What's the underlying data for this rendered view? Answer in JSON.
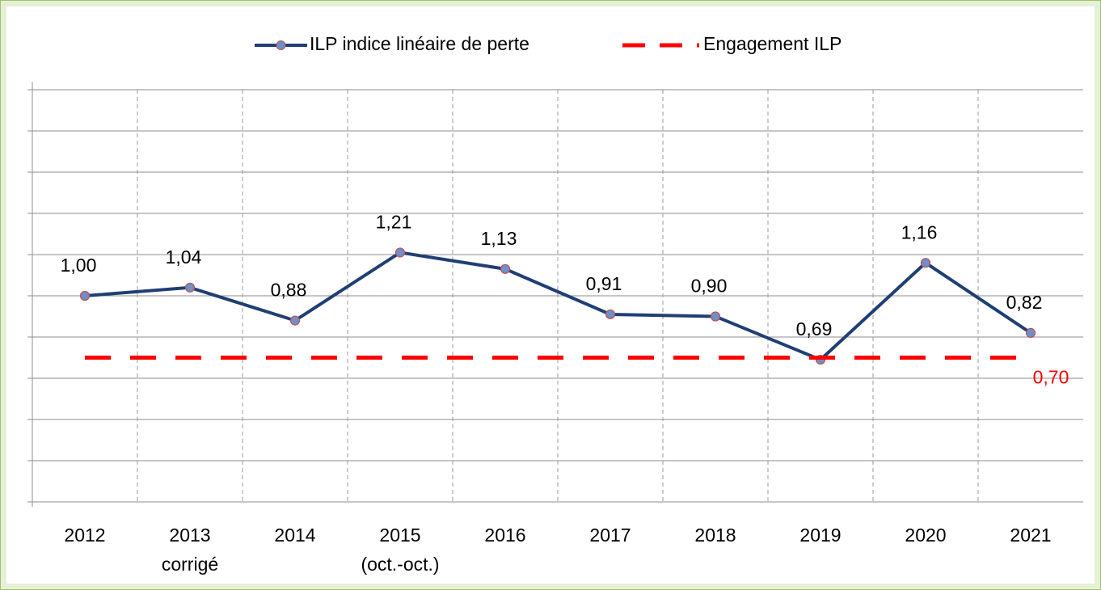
{
  "chart_data": {
    "type": "line",
    "categories": [
      "2012",
      "2013\ncorrigé",
      "2014",
      "2015\n(oct.-oct.)",
      "2016",
      "2017",
      "2018",
      "2019",
      "2020",
      "2021"
    ],
    "series": [
      {
        "name": "ILP indice linéaire de perte",
        "color": "#1f3f74",
        "marker_color": "#6f8fc8",
        "marker_edge": "#c0504d",
        "values": [
          1.0,
          1.04,
          0.88,
          1.21,
          1.13,
          0.91,
          0.9,
          0.69,
          1.16,
          0.82
        ],
        "value_labels": [
          "1,00",
          "1,04",
          "0,88",
          "1,21",
          "1,13",
          "0,91",
          "0,90",
          "0,69",
          "1,16",
          "0,82"
        ]
      },
      {
        "name": "Engagement ILP",
        "color": "#ff0000",
        "dashed": true,
        "values": [
          0.7,
          0.7,
          0.7,
          0.7,
          0.7,
          0.7,
          0.7,
          0.7,
          0.7,
          0.7
        ],
        "value_labels": [
          null,
          null,
          null,
          null,
          null,
          null,
          null,
          null,
          null,
          "0,70"
        ]
      }
    ],
    "ylim": [
      0,
      2
    ],
    "yticks": [
      0,
      0.2,
      0.4,
      0.6,
      0.8,
      1,
      1.2,
      1.4,
      1.6,
      1.8,
      2
    ],
    "grid": true,
    "legend": "top"
  }
}
